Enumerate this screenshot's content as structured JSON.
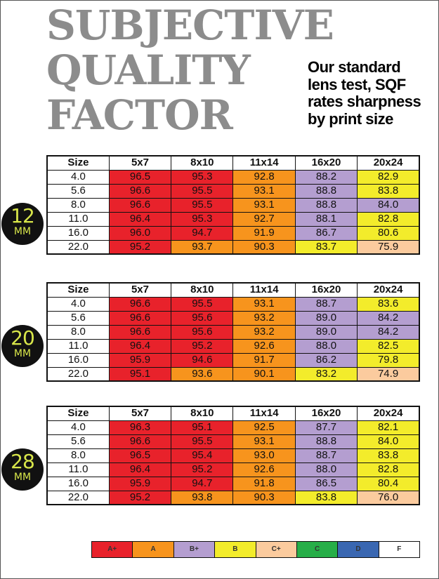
{
  "title": {
    "line1": "SUBJECTIVE",
    "line2": "QUALITY",
    "line3": "FACTOR"
  },
  "subtitle": {
    "line1": "Our standard",
    "line2": "lens test, SQF",
    "line3": "rates sharpness",
    "line4": "by print size"
  },
  "colors": {
    "A+": "#e8222b",
    "A": "#f7941d",
    "B+": "#b49ed0",
    "B": "#f3ec2b",
    "C+": "#fbcb9e",
    "C": "#27ae48",
    "D": "#3a67b1",
    "F": "#ffffff"
  },
  "headers": [
    "Size",
    "5x7",
    "8x10",
    "11x14",
    "16x20",
    "20x24"
  ],
  "tables": [
    {
      "focal": "12",
      "unit": "MM",
      "rows": [
        {
          "size": "4.0",
          "values": [
            "96.5",
            "95.3",
            "92.8",
            "88.2",
            "82.9"
          ],
          "grades": [
            "A+",
            "A+",
            "A",
            "B+",
            "B"
          ]
        },
        {
          "size": "5.6",
          "values": [
            "96.6",
            "95.5",
            "93.1",
            "88.8",
            "83.8"
          ],
          "grades": [
            "A+",
            "A+",
            "A",
            "B+",
            "B"
          ]
        },
        {
          "size": "8.0",
          "values": [
            "96.6",
            "95.5",
            "93.1",
            "88.8",
            "84.0"
          ],
          "grades": [
            "A+",
            "A+",
            "A",
            "B+",
            "B+"
          ]
        },
        {
          "size": "11.0",
          "values": [
            "96.4",
            "95.3",
            "92.7",
            "88.1",
            "82.8"
          ],
          "grades": [
            "A+",
            "A+",
            "A",
            "B+",
            "B"
          ]
        },
        {
          "size": "16.0",
          "values": [
            "96.0",
            "94.7",
            "91.9",
            "86.7",
            "80.6"
          ],
          "grades": [
            "A+",
            "A+",
            "A",
            "B+",
            "B"
          ]
        },
        {
          "size": "22.0",
          "values": [
            "95.2",
            "93.7",
            "90.3",
            "83.7",
            "75.9"
          ],
          "grades": [
            "A+",
            "A",
            "A",
            "B",
            "C+"
          ]
        }
      ]
    },
    {
      "focal": "20",
      "unit": "MM",
      "rows": [
        {
          "size": "4.0",
          "values": [
            "96.6",
            "95.5",
            "93.1",
            "88.7",
            "83.6"
          ],
          "grades": [
            "A+",
            "A+",
            "A",
            "B+",
            "B"
          ]
        },
        {
          "size": "5.6",
          "values": [
            "96.6",
            "95.6",
            "93.2",
            "89.0",
            "84.2"
          ],
          "grades": [
            "A+",
            "A+",
            "A",
            "B+",
            "B+"
          ]
        },
        {
          "size": "8.0",
          "values": [
            "96.6",
            "95.6",
            "93.2",
            "89.0",
            "84.2"
          ],
          "grades": [
            "A+",
            "A+",
            "A",
            "B+",
            "B+"
          ]
        },
        {
          "size": "11.0",
          "values": [
            "96.4",
            "95.2",
            "92.6",
            "88.0",
            "82.5"
          ],
          "grades": [
            "A+",
            "A+",
            "A",
            "B+",
            "B"
          ]
        },
        {
          "size": "16.0",
          "values": [
            "95.9",
            "94.6",
            "91.7",
            "86.2",
            "79.8"
          ],
          "grades": [
            "A+",
            "A+",
            "A",
            "B+",
            "B"
          ]
        },
        {
          "size": "22.0",
          "values": [
            "95.1",
            "93.6",
            "90.1",
            "83.2",
            "74.9"
          ],
          "grades": [
            "A+",
            "A",
            "A",
            "B",
            "C+"
          ]
        }
      ]
    },
    {
      "focal": "28",
      "unit": "MM",
      "rows": [
        {
          "size": "4.0",
          "values": [
            "96.3",
            "95.1",
            "92.5",
            "87.7",
            "82.1"
          ],
          "grades": [
            "A+",
            "A+",
            "A",
            "B+",
            "B"
          ]
        },
        {
          "size": "5.6",
          "values": [
            "96.6",
            "95.5",
            "93.1",
            "88.8",
            "84.0"
          ],
          "grades": [
            "A+",
            "A+",
            "A",
            "B+",
            "B"
          ]
        },
        {
          "size": "8.0",
          "values": [
            "96.5",
            "95.4",
            "93.0",
            "88.7",
            "83.8"
          ],
          "grades": [
            "A+",
            "A+",
            "A",
            "B+",
            "B"
          ]
        },
        {
          "size": "11.0",
          "values": [
            "96.4",
            "95.2",
            "92.6",
            "88.0",
            "82.8"
          ],
          "grades": [
            "A+",
            "A+",
            "A",
            "B+",
            "B"
          ]
        },
        {
          "size": "16.0",
          "values": [
            "95.9",
            "94.7",
            "91.8",
            "86.5",
            "80.4"
          ],
          "grades": [
            "A+",
            "A+",
            "A",
            "B+",
            "B"
          ]
        },
        {
          "size": "22.0",
          "values": [
            "95.2",
            "93.8",
            "90.3",
            "83.8",
            "76.0"
          ],
          "grades": [
            "A+",
            "A",
            "A",
            "B",
            "C+"
          ]
        }
      ]
    }
  ],
  "legend": [
    "A+",
    "A",
    "B+",
    "B",
    "C+",
    "C",
    "D",
    "F"
  ]
}
